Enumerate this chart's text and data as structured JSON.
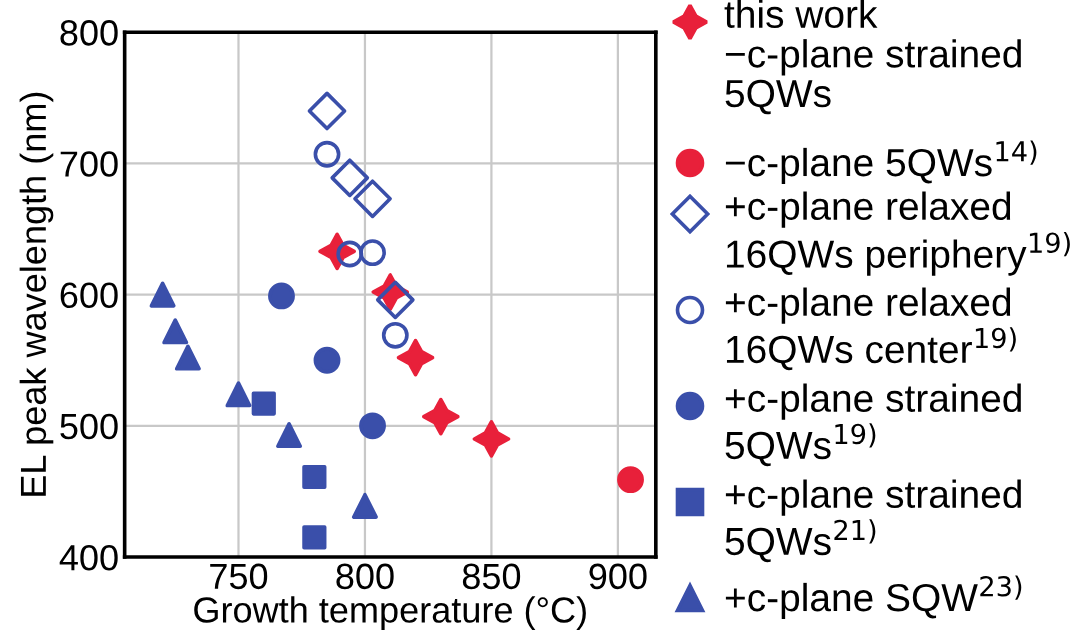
{
  "chart_data": {
    "type": "scatter",
    "xlabel": "Growth temperature (°C)",
    "ylabel": "EL peak wavelength (nm)",
    "xlim": [
      705,
      915
    ],
    "xticks": [
      750,
      800,
      850,
      900
    ],
    "ylim": [
      400,
      800
    ],
    "yticks": [
      400,
      500,
      600,
      700,
      800
    ],
    "grid": true,
    "legend": "right",
    "series": [
      {
        "name": "this work\n−c-plane strained\n5QWs",
        "color": "#e8203a",
        "marker": "star",
        "x": [
          789,
          810,
          820,
          830,
          850
        ],
        "values": [
          633,
          602,
          552,
          507,
          490
        ]
      },
      {
        "name": "−c-plane 5QWs$^{14)}$",
        "color": "#e8203a",
        "marker": "circle",
        "x": [
          905
        ],
        "values": [
          459
        ]
      },
      {
        "name": "+c-plane relaxed\n16QWs periphery$^{19)}$",
        "color": "#3a4faa",
        "marker": "diamond",
        "x": [
          785,
          794,
          803,
          812
        ],
        "values": [
          740,
          689,
          673,
          596
        ]
      },
      {
        "name": "+c-plane relaxed\n16QWs center$^{19)}$",
        "color": "#3a4faa",
        "marker": "circle",
        "x": [
          785,
          794,
          803,
          812
        ],
        "values": [
          707,
          631,
          632,
          569
        ]
      },
      {
        "name": "+c-plane strained\n5QWs$^{19)}$",
        "color": "#3a4faa",
        "marker": "circle",
        "x": [
          767,
          785,
          803
        ],
        "values": [
          599,
          550,
          500
        ]
      },
      {
        "name": "+c-plane strained\n5QWs$^{21)}$",
        "color": "#3a4faa",
        "marker": "square",
        "x": [
          760,
          780,
          780
        ],
        "values": [
          517,
          461,
          415
        ]
      },
      {
        "name": "+c-plane SQW$^{23)}$",
        "color": "#3a4faa",
        "marker": "triangle",
        "x": [
          720,
          725,
          730,
          750,
          770,
          800
        ],
        "values": [
          600,
          572,
          552,
          524,
          493,
          439
        ]
      }
    ]
  }
}
